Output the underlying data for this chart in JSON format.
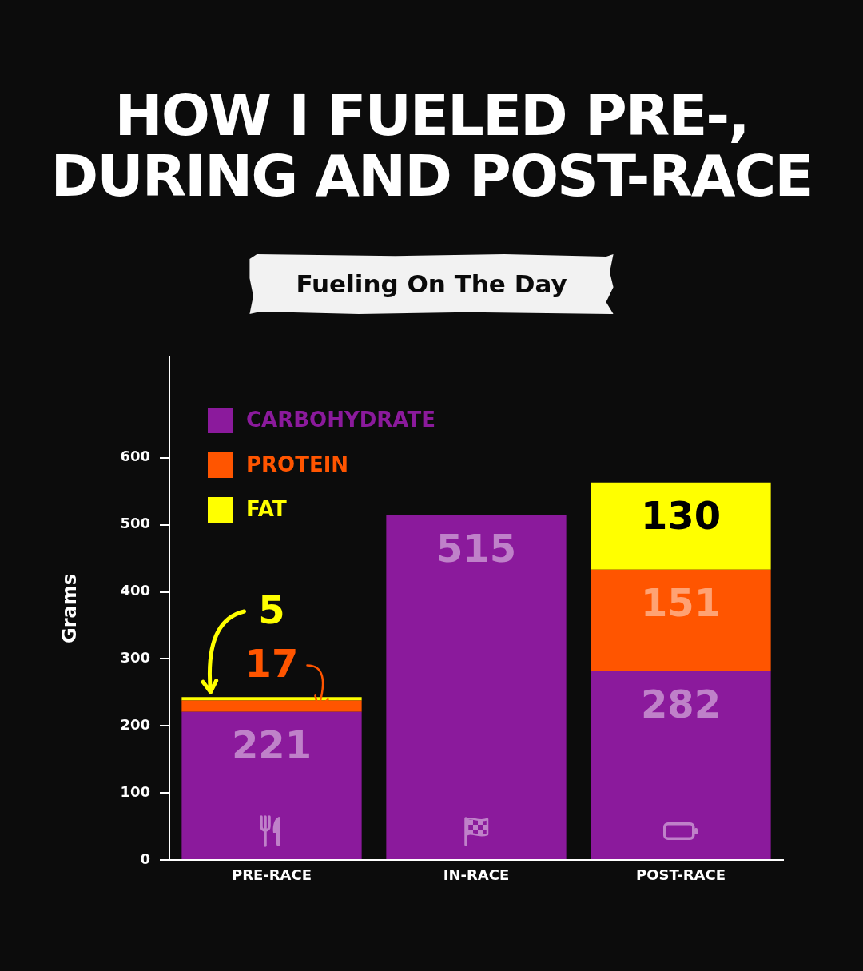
{
  "chart_data": {
    "type": "bar",
    "title": "HOW I FUELED PRE-, DURING AND POST-RACE",
    "subtitle": "Fueling On The Day",
    "ylabel": "Grams",
    "categories": [
      "PRE-RACE",
      "IN-RACE",
      "POST-RACE"
    ],
    "series": [
      {
        "name": "CARBOHYDRATE",
        "color": "#8b1a9c",
        "values": [
          221,
          515,
          282
        ]
      },
      {
        "name": "PROTEIN",
        "color": "#ff5500",
        "values": [
          17,
          null,
          151
        ]
      },
      {
        "name": "FAT",
        "color": "#ffff00",
        "values": [
          5,
          null,
          130
        ]
      }
    ],
    "stacked": true,
    "ylim": [
      0,
      750
    ],
    "yticks": [
      0,
      100,
      200,
      300,
      400,
      500,
      600
    ],
    "grid": false,
    "legend": "top left",
    "data_labels": true
  }
}
